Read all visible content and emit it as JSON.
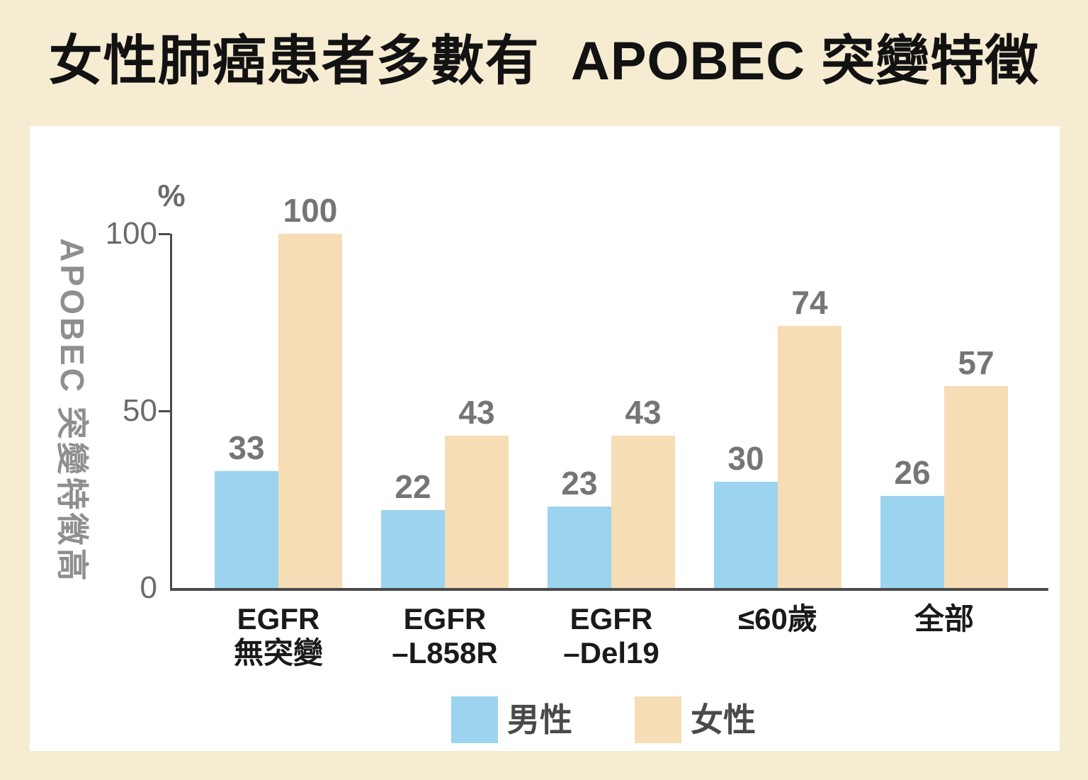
{
  "title": "女性肺癌患者多數有  APOBEC 突變特徵",
  "chart_data": {
    "type": "bar",
    "title": "女性肺癌患者多數有 APOBEC 突變特徵",
    "unit_label": "%",
    "ylabel": "APOBEC 突變特徵高",
    "ylim": [
      0,
      100
    ],
    "yticks": [
      0,
      50,
      100
    ],
    "grid": false,
    "legend_position": "bottom",
    "categories": [
      "EGFR\n無突變",
      "EGFR\n–L858R",
      "EGFR\n–Del19",
      "≤60歲",
      "全部"
    ],
    "series": [
      {
        "name": "男性",
        "key": "male",
        "color": "#9cd3ef",
        "values": [
          33,
          22,
          23,
          30,
          26
        ]
      },
      {
        "name": "女性",
        "key": "female",
        "color": "#f6ddb5",
        "values": [
          100,
          43,
          43,
          74,
          57
        ]
      }
    ]
  },
  "colors": {
    "background": "#f6ecd2",
    "panel": "#ffffff",
    "axis": "#4a4a4a",
    "tick_label": "#6b6b6b",
    "value_label": "#757575",
    "y_axis_title": "#8f8f8f",
    "title": "#121212",
    "category_label": "#1a1a1a",
    "legend_label": "#4a4a4a"
  }
}
